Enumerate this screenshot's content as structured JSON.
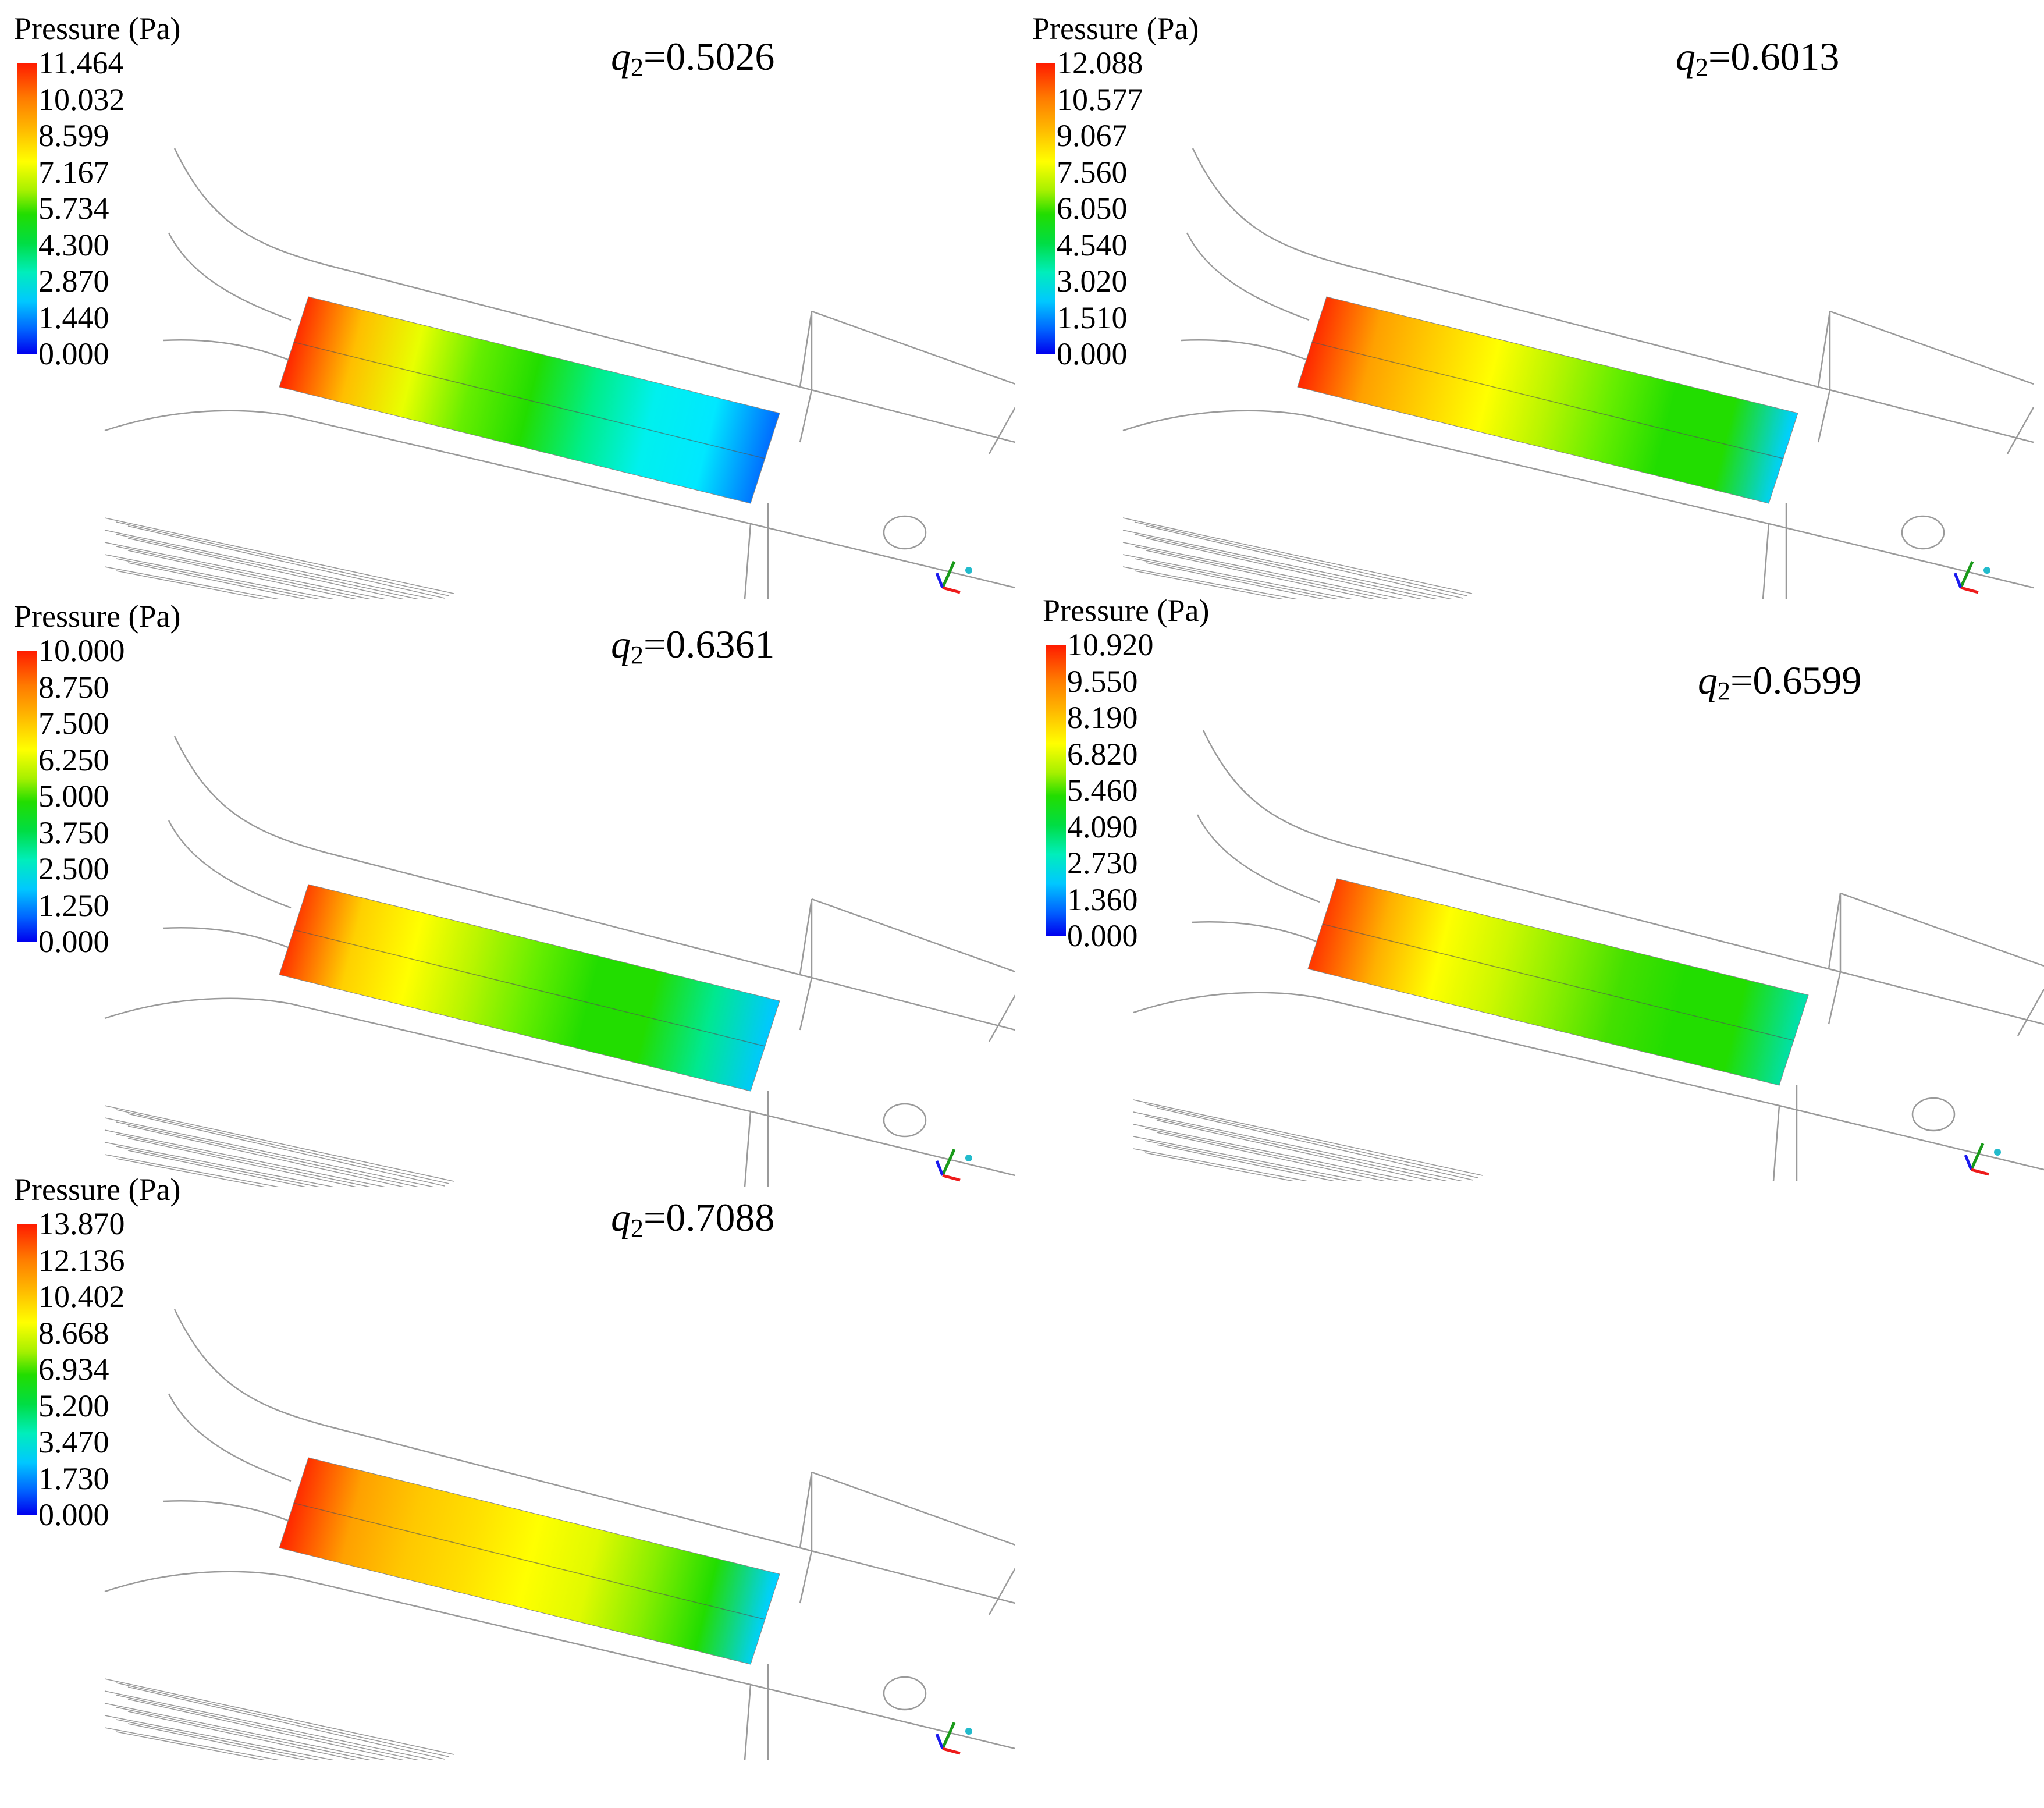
{
  "legend_title": "Pressure (Pa)",
  "panels": [
    {
      "q_var": "q",
      "q_sub": "2",
      "q_value": "=0.5026",
      "ticks": [
        "11.464",
        "10.032",
        "8.599",
        "7.167",
        "5.734",
        "4.300",
        "2.870",
        "1.440",
        "0.000"
      ],
      "strip_gradient": [
        "#ff2a00",
        "#ffbe00",
        "#e8ff00",
        "#66ee00",
        "#22dd00",
        "#00ee88",
        "#00f0ee",
        "#00e8ff",
        "#0070ff"
      ]
    },
    {
      "q_var": "q",
      "q_sub": "2",
      "q_value": "=0.6013",
      "ticks": [
        "12.088",
        "10.577",
        "9.067",
        "7.560",
        "6.050",
        "4.540",
        "3.020",
        "1.510",
        "0.000"
      ],
      "strip_gradient": [
        "#ff2a00",
        "#ffa000",
        "#ffd000",
        "#ffff00",
        "#b8f500",
        "#66ee00",
        "#22dd00",
        "#22dd00",
        "#00d0ff"
      ]
    },
    {
      "q_var": "q",
      "q_sub": "2",
      "q_value": "=0.6361",
      "ticks": [
        "10.000",
        "8.750",
        "7.500",
        "6.250",
        "5.000",
        "3.750",
        "2.500",
        "1.250",
        "0.000"
      ],
      "strip_gradient": [
        "#ff3a00",
        "#ffd000",
        "#ffff00",
        "#b8f500",
        "#66ee00",
        "#22dd00",
        "#22dd00",
        "#00e890",
        "#00c8ff"
      ]
    },
    {
      "q_var": "q",
      "q_sub": "2",
      "q_value": "=0.6599",
      "ticks": [
        "10.920",
        "9.550",
        "8.190",
        "6.820",
        "5.460",
        "4.090",
        "2.730",
        "1.360",
        "0.000"
      ],
      "strip_gradient": [
        "#ff3a00",
        "#ffb000",
        "#ffff00",
        "#ccf800",
        "#88ee00",
        "#44e000",
        "#22dd00",
        "#22dd00",
        "#00e0aa"
      ]
    },
    {
      "q_var": "q",
      "q_sub": "2",
      "q_value": "=0.7088",
      "ticks": [
        "13.870",
        "12.136",
        "10.402",
        "8.668",
        "6.934",
        "5.200",
        "3.470",
        "1.730",
        "0.000"
      ],
      "strip_gradient": [
        "#ff2a00",
        "#ffa000",
        "#ffc800",
        "#ffe000",
        "#ffff00",
        "#e0fa00",
        "#88ee00",
        "#22dd00",
        "#00d0ff"
      ]
    }
  ]
}
